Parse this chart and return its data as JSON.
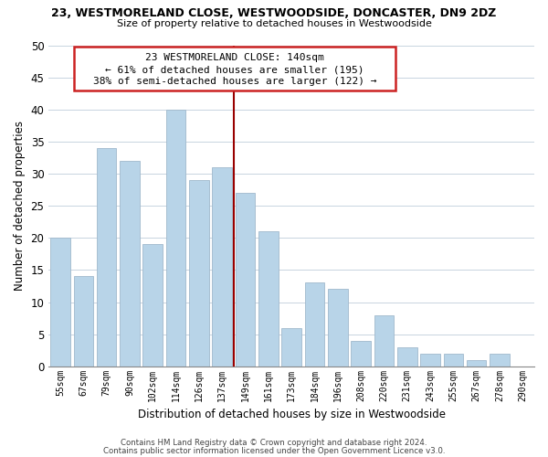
{
  "title": "23, WESTMORELAND CLOSE, WESTWOODSIDE, DONCASTER, DN9 2DZ",
  "subtitle": "Size of property relative to detached houses in Westwoodside",
  "xlabel": "Distribution of detached houses by size in Westwoodside",
  "ylabel": "Number of detached properties",
  "categories": [
    "55sqm",
    "67sqm",
    "79sqm",
    "90sqm",
    "102sqm",
    "114sqm",
    "126sqm",
    "137sqm",
    "149sqm",
    "161sqm",
    "173sqm",
    "184sqm",
    "196sqm",
    "208sqm",
    "220sqm",
    "231sqm",
    "243sqm",
    "255sqm",
    "267sqm",
    "278sqm",
    "290sqm"
  ],
  "values": [
    20,
    14,
    34,
    32,
    19,
    40,
    29,
    31,
    27,
    21,
    6,
    13,
    12,
    4,
    8,
    3,
    2,
    2,
    1,
    2,
    0
  ],
  "bar_color": "#b8d4e8",
  "vline_color": "#990000",
  "vline_index": 7.5,
  "ylim": [
    0,
    50
  ],
  "yticks": [
    0,
    5,
    10,
    15,
    20,
    25,
    30,
    35,
    40,
    45,
    50
  ],
  "annotation_title": "23 WESTMORELAND CLOSE: 140sqm",
  "annotation_line1": "← 61% of detached houses are smaller (195)",
  "annotation_line2": "38% of semi-detached houses are larger (122) →",
  "footer_line1": "Contains HM Land Registry data © Crown copyright and database right 2024.",
  "footer_line2": "Contains public sector information licensed under the Open Government Licence v3.0.",
  "background_color": "#ffffff",
  "grid_color": "#c8d4e0"
}
